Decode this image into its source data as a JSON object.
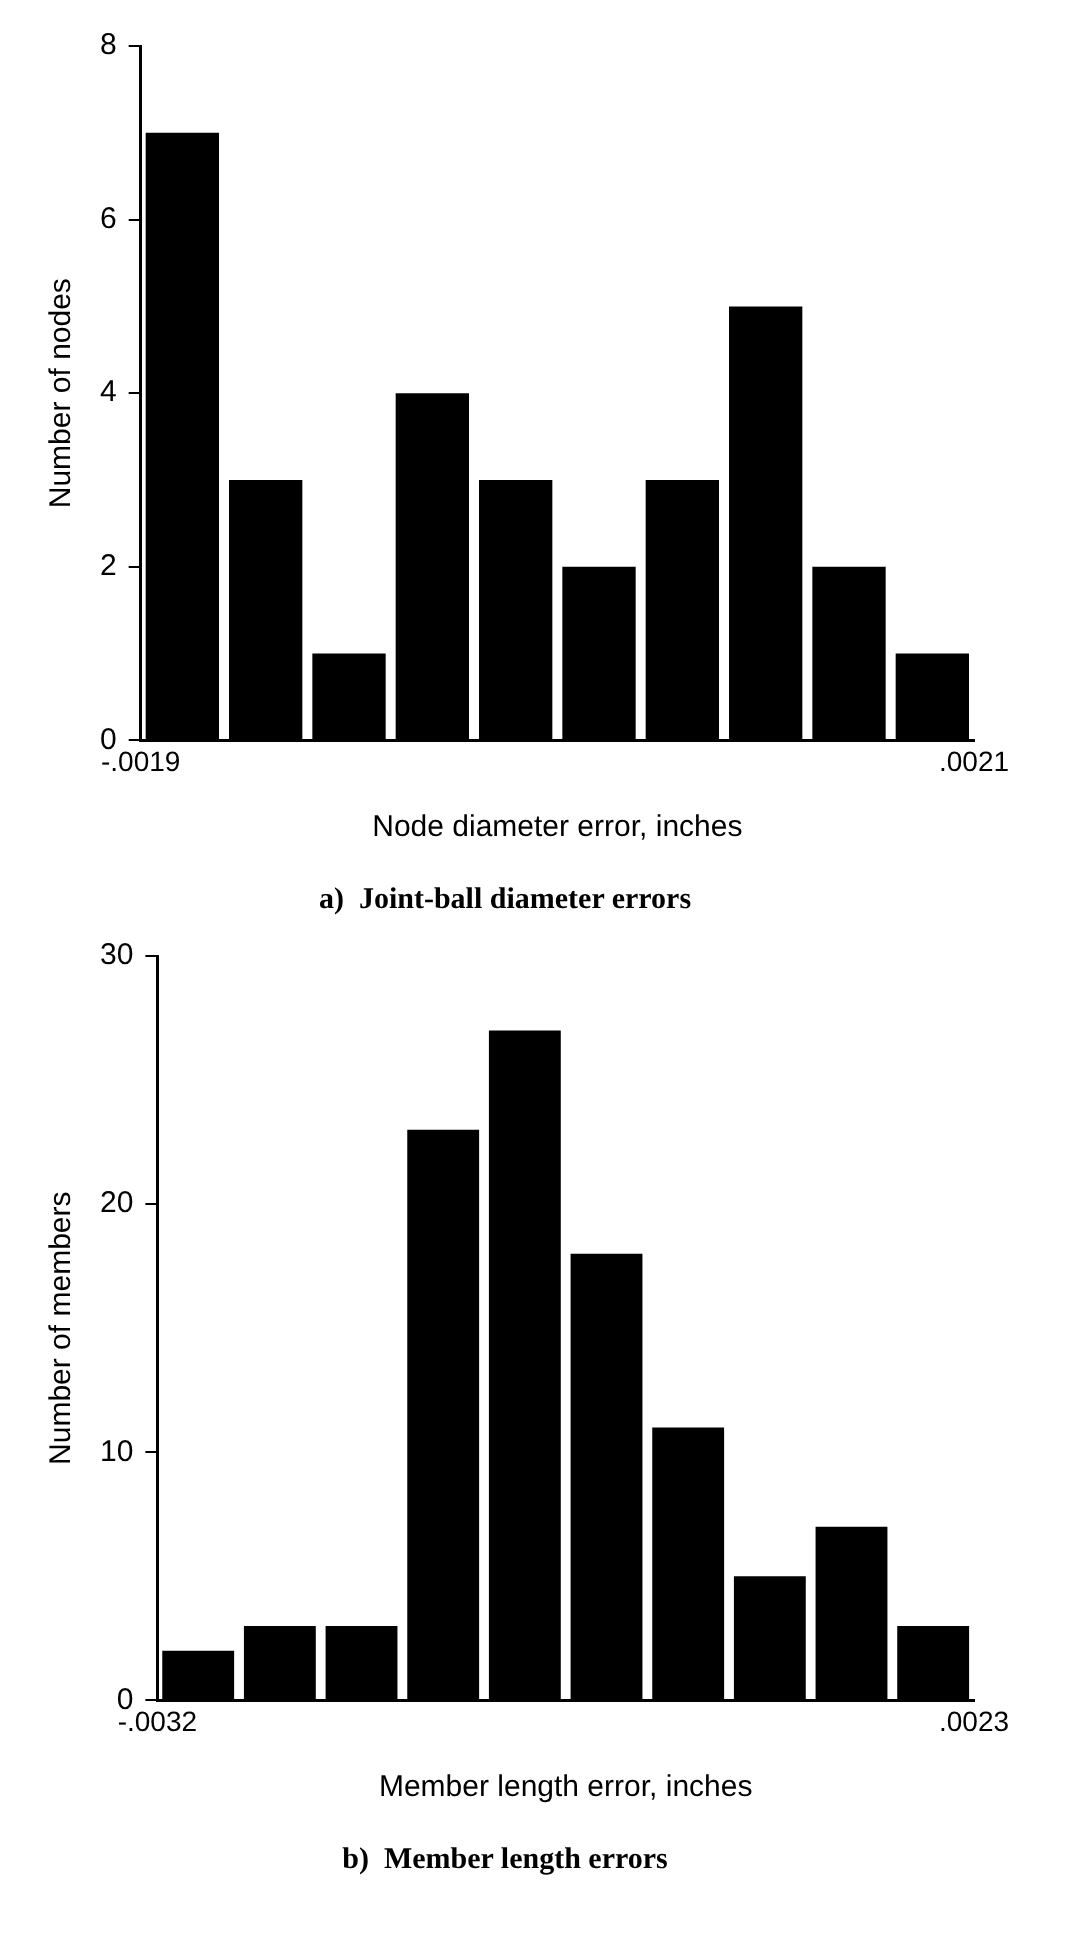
{
  "chart_data": [
    {
      "type": "histogram",
      "title": "a)  Joint-ball diameter errors",
      "xlabel": "Node diameter error, inches",
      "ylabel": "Number of nodes",
      "bins": [
        -0.0019,
        -0.0015,
        -0.0011,
        -0.0007,
        -0.0003,
        0.0001,
        0.0005,
        0.0009,
        0.0013,
        0.0017,
        0.0021
      ],
      "values": [
        7,
        3,
        1,
        4,
        3,
        2,
        3,
        5,
        2,
        1
      ],
      "color": "#000000",
      "xlim": [
        -0.0019,
        0.0021
      ],
      "xticks": [
        {
          "value": -0.0019,
          "label": "-.0019"
        },
        {
          "value": 0.0021,
          "label": ".0021"
        }
      ],
      "ylim": [
        0,
        8
      ],
      "yticks": [
        0,
        2,
        4,
        6,
        8
      ],
      "grid": false,
      "legend": false
    },
    {
      "type": "histogram",
      "title": "b)  Member length errors",
      "xlabel": "Member length error, inches",
      "ylabel": "Number of members",
      "bins": [
        -0.0032,
        -0.00265,
        -0.0021,
        -0.00155,
        -0.001,
        -0.00045,
        0.0001,
        0.00065,
        0.0012,
        0.00175,
        0.0023
      ],
      "values": [
        2,
        3,
        3,
        23,
        27,
        18,
        11,
        5,
        7,
        3
      ],
      "color": "#000000",
      "xlim": [
        -0.0032,
        0.0023
      ],
      "xticks": [
        {
          "value": -0.0032,
          "label": "-.0032"
        },
        {
          "value": 0.0023,
          "label": ".0023"
        }
      ],
      "ylim": [
        0,
        30
      ],
      "yticks": [
        0,
        10,
        20,
        30
      ],
      "grid": false,
      "legend": false
    }
  ]
}
